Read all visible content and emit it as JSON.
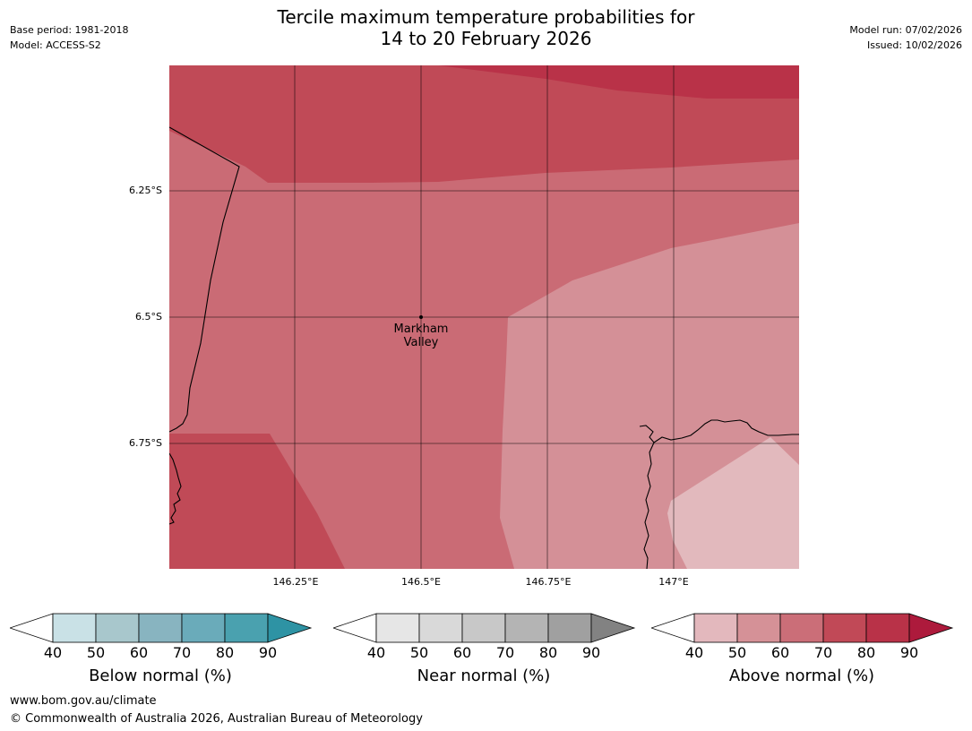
{
  "header": {
    "base_period": "Base period: 1981-2018",
    "model": "Model: ACCESS-S2",
    "model_run": "Model run: 07/02/2026",
    "issued": "Issued: 10/02/2026",
    "title_line1": "Tercile maximum temperature probabilities for",
    "title_line2": "14 to 20 February 2026"
  },
  "map": {
    "latitude_labels": [
      "6.25°S",
      "6.5°S",
      "6.75°S"
    ],
    "longitude_labels": [
      "146.25°E",
      "146.5°E",
      "146.75°E",
      "147°E"
    ],
    "place": {
      "line1": "Markham",
      "line2": "Valley"
    }
  },
  "legends": [
    {
      "label": "Below normal (%)",
      "ticks": [
        "40",
        "50",
        "60",
        "70",
        "80",
        "90"
      ],
      "colors": [
        "#ffffff",
        "#c9e1e6",
        "#a8c7cc",
        "#88b4c0",
        "#6aabba",
        "#4aa1af",
        "#2e93a4"
      ]
    },
    {
      "label": "Near normal (%)",
      "ticks": [
        "40",
        "50",
        "60",
        "70",
        "80",
        "90"
      ],
      "colors": [
        "#ffffff",
        "#e6e6e6",
        "#d9d9d9",
        "#c8c8c8",
        "#b4b4b4",
        "#a0a0a0",
        "#828282"
      ]
    },
    {
      "label": "Above normal (%)",
      "ticks": [
        "40",
        "50",
        "60",
        "70",
        "80",
        "90"
      ],
      "colors": [
        "#ffffff",
        "#e3b8bd",
        "#d59197",
        "#cb6e78",
        "#c14957",
        "#b93248",
        "#ad1a3c"
      ]
    }
  ],
  "footer": {
    "website": "www.bom.gov.au/climate",
    "copyright": "© Commonwealth of Australia 2026, Australian Bureau of Meteorology"
  }
}
